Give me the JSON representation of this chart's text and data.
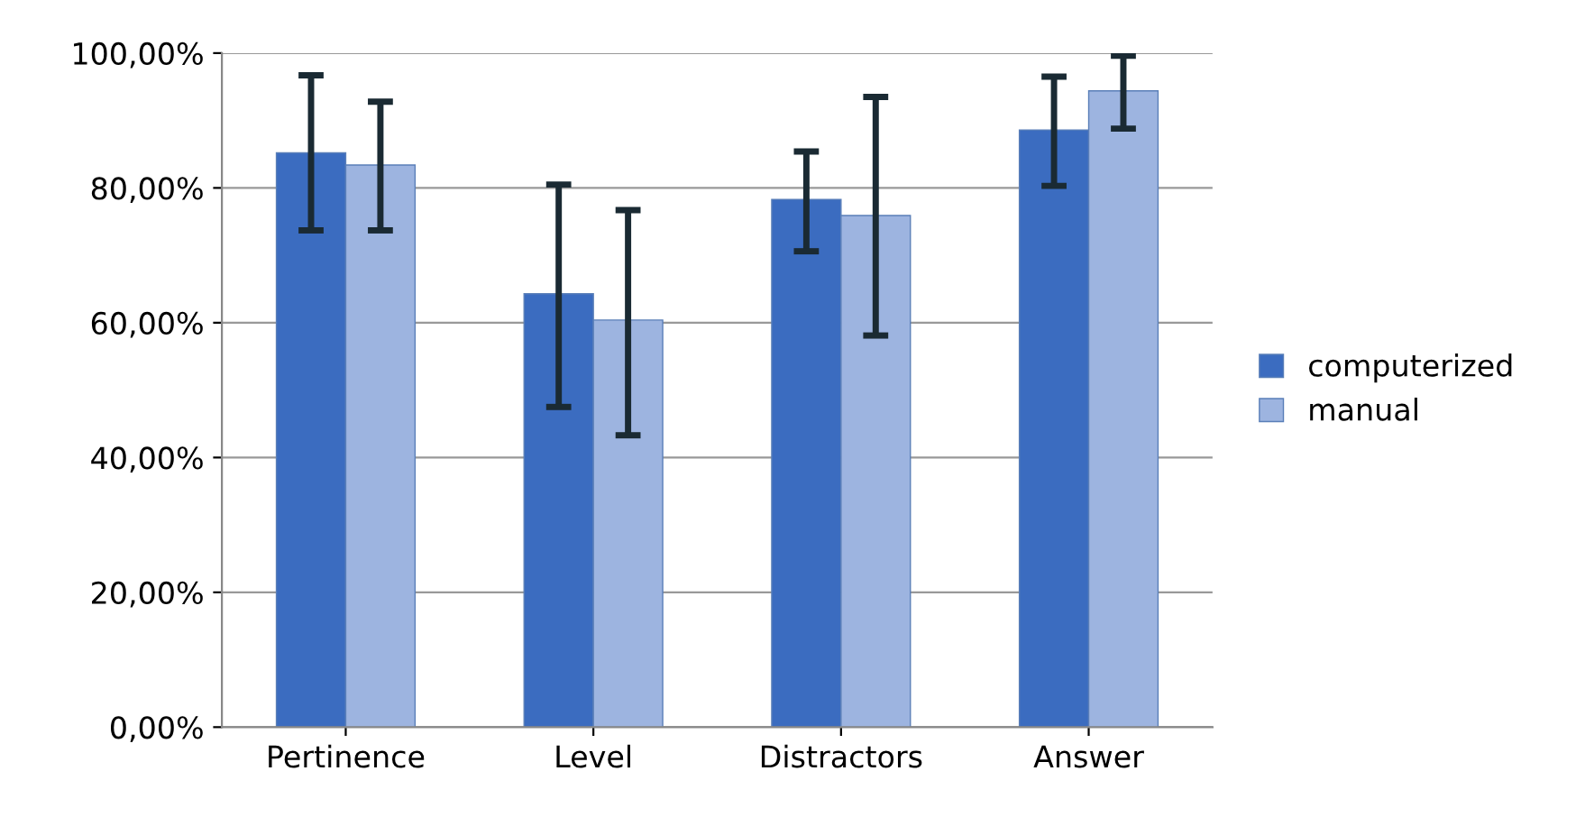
{
  "chart_data": {
    "type": "bar",
    "categories": [
      "Pertinence",
      "Level",
      "Distractors",
      "Answer"
    ],
    "series": [
      {
        "name": "computerized",
        "color": "#3b6cc0",
        "values": [
          85.2,
          64.3,
          78.3,
          88.6
        ],
        "errors": [
          [
            73.7,
            96.7
          ],
          [
            47.5,
            80.5
          ],
          [
            70.6,
            85.4
          ],
          [
            80.3,
            96.5
          ]
        ]
      },
      {
        "name": "manual",
        "color": "#9db4e0",
        "values": [
          83.4,
          60.4,
          75.9,
          94.4
        ],
        "errors": [
          [
            73.7,
            92.8
          ],
          [
            43.3,
            76.7
          ],
          [
            58.1,
            93.5
          ],
          [
            88.8,
            99.6
          ]
        ]
      }
    ],
    "ylim": [
      0,
      100
    ],
    "yticks": [
      {
        "value": 0,
        "label": "0,00%"
      },
      {
        "value": 20,
        "label": "20,00%"
      },
      {
        "value": 40,
        "label": "40,00%"
      },
      {
        "value": 60,
        "label": "60,00%"
      },
      {
        "value": 80,
        "label": "80,00%"
      },
      {
        "value": 100,
        "label": "100,00%"
      }
    ],
    "grid": "y",
    "legend": "right"
  }
}
